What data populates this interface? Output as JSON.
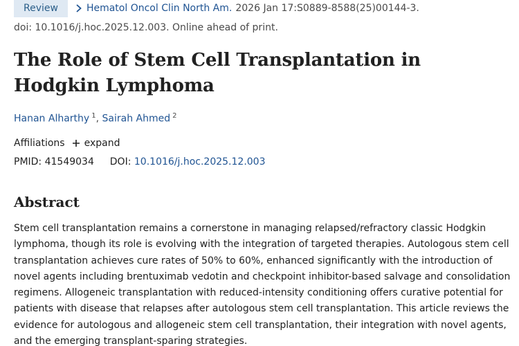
{
  "article": {
    "publication_type": "Review",
    "journal": "Hematol Oncol Clin North Am.",
    "citation_details": "2026 Jan 17:S0889-8588(25)00144-3.",
    "doi_line": "doi: 10.1016/j.hoc.2025.12.003. Online ahead of print.",
    "title": "The Role of Stem Cell Transplantation in Hodgkin Lymphoma",
    "authors": [
      {
        "name": "Hanan Alharthy",
        "affiliation": "1"
      },
      {
        "name": "Sairah Ahmed",
        "affiliation": "2"
      }
    ],
    "author_separator": ",",
    "affiliations_label": "Affiliations",
    "expand_label": "expand",
    "pmid_label": "PMID:",
    "pmid": "41549034",
    "doi_label": "DOI:",
    "doi": "10.1016/j.hoc.2025.12.003",
    "abstract_heading": "Abstract",
    "abstract_text": "Stem cell transplantation remains a cornerstone in managing relapsed/refractory classic Hodgkin lymphoma, though its role is evolving with the integration of targeted therapies. Autologous stem cell transplantation achieves cure rates of 50% to 60%, enhanced significantly with the introduction of novel agents including brentuximab vedotin and checkpoint inhibitor-based salvage and consolidation regimens. Allogeneic transplantation with reduced-intensity conditioning offers curative potential for patients with disease that relapses after autologous stem cell transplantation. This article reviews the evidence for autologous and allogeneic stem cell transplantation, their integration with novel agents, and the emerging transplant-sparing strategies."
  },
  "colors": {
    "link": "#205493",
    "badge_bg": "#dfe9f3",
    "text": "#212121"
  },
  "icons": {
    "journal_chevron": "chevron-right-icon",
    "expand": "plus-icon"
  }
}
